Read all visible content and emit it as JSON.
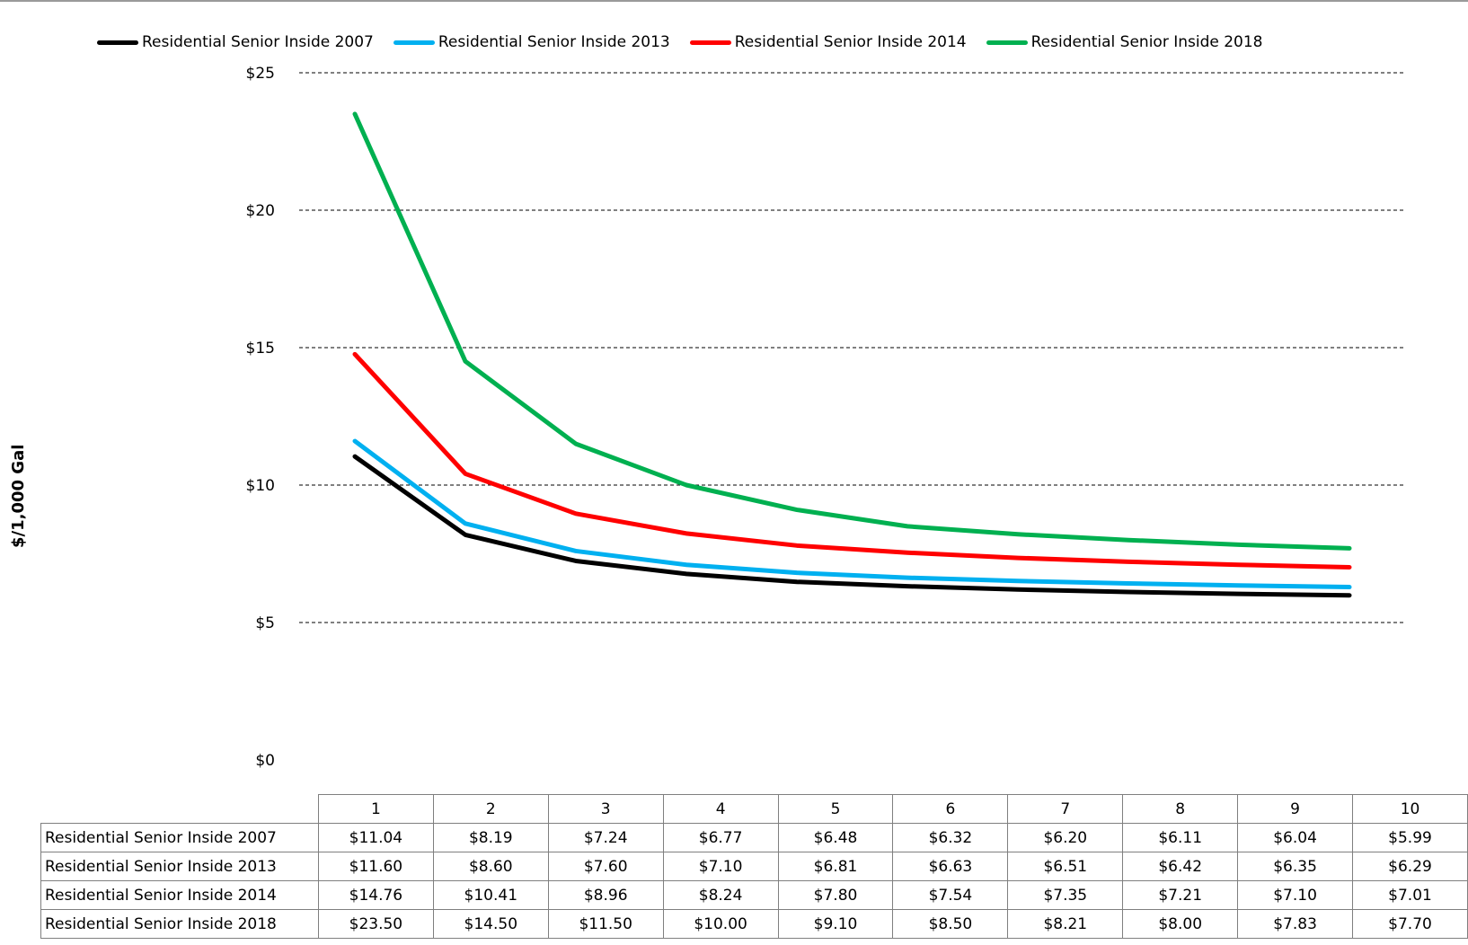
{
  "chart_data": {
    "type": "line",
    "title": "",
    "ylabel": "$/1,000 Gal",
    "xlabel": "",
    "x": [
      1,
      2,
      3,
      4,
      5,
      6,
      7,
      8,
      9,
      10
    ],
    "x_labels": [
      "1",
      "2",
      "3",
      "4",
      "5",
      "6",
      "7",
      "8",
      "9",
      "10"
    ],
    "ylim": [
      0,
      25
    ],
    "y_ticks": [
      0,
      5,
      10,
      15,
      20,
      25
    ],
    "y_tick_labels": [
      "$0",
      "$5",
      "$10",
      "$15",
      "$20",
      "$25"
    ],
    "grid": "horizontal dashed",
    "legend_position": "top",
    "series": [
      {
        "name": "Residential Senior Inside 2007",
        "color": "#000000",
        "values": [
          11.04,
          8.19,
          7.24,
          6.77,
          6.48,
          6.32,
          6.2,
          6.11,
          6.04,
          5.99
        ],
        "value_labels": [
          "$11.04",
          "$8.19",
          "$7.24",
          "$6.77",
          "$6.48",
          "$6.32",
          "$6.20",
          "$6.11",
          "$6.04",
          "$5.99"
        ]
      },
      {
        "name": "Residential Senior Inside 2013",
        "color": "#00b0f0",
        "values": [
          11.6,
          8.6,
          7.6,
          7.1,
          6.81,
          6.63,
          6.51,
          6.42,
          6.35,
          6.29
        ],
        "value_labels": [
          "$11.60",
          "$8.60",
          "$7.60",
          "$7.10",
          "$6.81",
          "$6.63",
          "$6.51",
          "$6.42",
          "$6.35",
          "$6.29"
        ]
      },
      {
        "name": "Residential Senior Inside 2014",
        "color": "#ff0000",
        "values": [
          14.76,
          10.41,
          8.96,
          8.24,
          7.8,
          7.54,
          7.35,
          7.21,
          7.1,
          7.01
        ],
        "value_labels": [
          "$14.76",
          "$10.41",
          "$8.96",
          "$8.24",
          "$7.80",
          "$7.54",
          "$7.35",
          "$7.21",
          "$7.10",
          "$7.01"
        ]
      },
      {
        "name": "Residential Senior Inside 2018",
        "color": "#00b050",
        "values": [
          23.5,
          14.5,
          11.5,
          10.0,
          9.1,
          8.5,
          8.21,
          8.0,
          7.83,
          7.7
        ],
        "value_labels": [
          "$23.50",
          "$14.50",
          "$11.50",
          "$10.00",
          "$9.10",
          "$8.50",
          "$8.21",
          "$8.00",
          "$7.83",
          "$7.70"
        ]
      }
    ]
  }
}
